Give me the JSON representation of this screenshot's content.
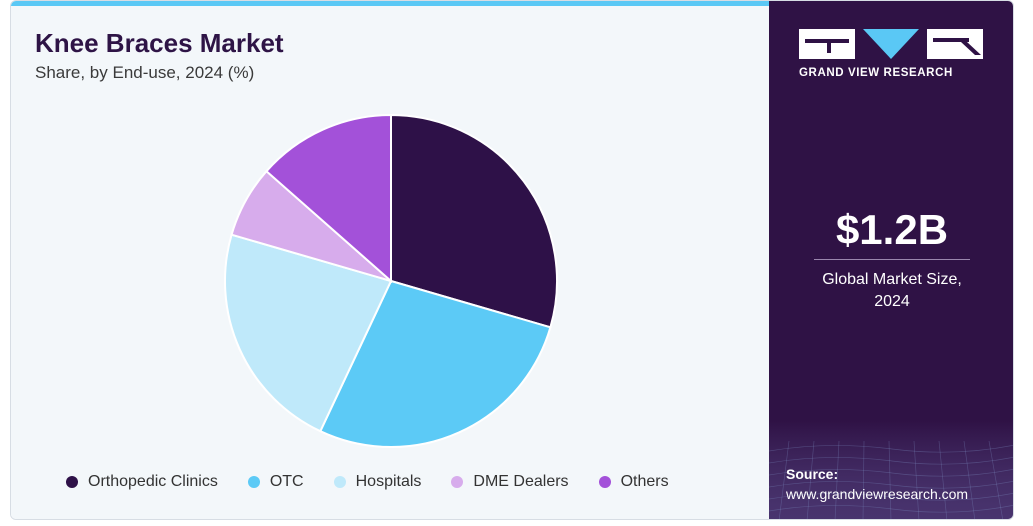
{
  "header": {
    "title": "Knee Braces Market",
    "subtitle": "Share, by End-use, 2024 (%)"
  },
  "brand": {
    "name": "GRAND VIEW RESEARCH",
    "colors": {
      "panel": "#2f1245",
      "accent": "#5ac8f5"
    }
  },
  "stat": {
    "value": "$1.2B",
    "label_line1": "Global Market Size,",
    "label_line2": "2024"
  },
  "source": {
    "label": "Source:",
    "url": "www.grandviewresearch.com"
  },
  "chart_data": {
    "type": "pie",
    "title": "Knee Braces Market",
    "subtitle": "Share, by End-use, 2024 (%)",
    "categories": [
      "Orthopedic Clinics",
      "OTC",
      "Hospitals",
      "DME Dealers",
      "Others"
    ],
    "values": [
      29.5,
      27.5,
      22.5,
      7.0,
      13.5
    ],
    "colors": [
      "#2e1148",
      "#5ccaf6",
      "#bfe9fa",
      "#d7acec",
      "#a351d9"
    ],
    "start_angle_deg": 0,
    "direction": "clockwise",
    "legend_position": "bottom"
  }
}
